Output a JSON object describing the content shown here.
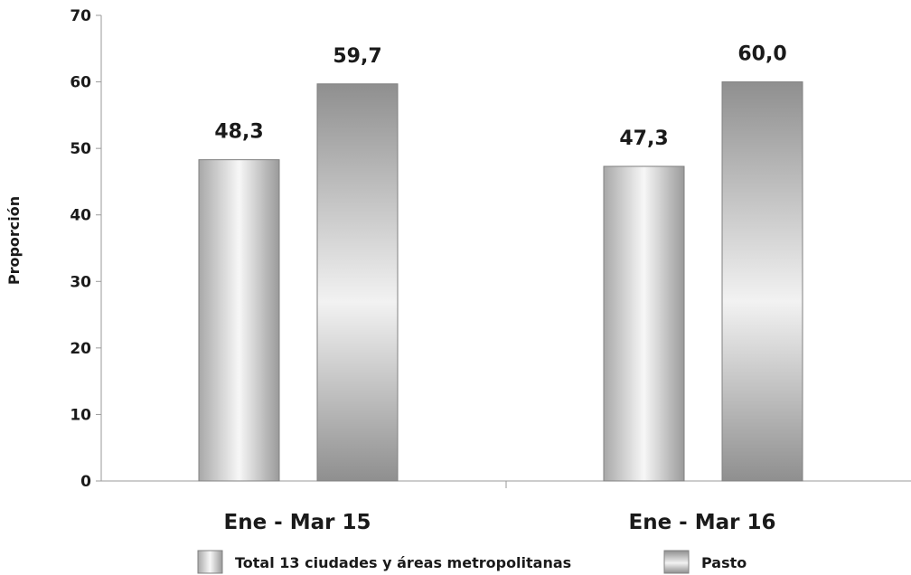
{
  "chart_data": {
    "type": "bar",
    "categories": [
      "Ene - Mar 15",
      "Ene - Mar 16"
    ],
    "series": [
      {
        "name": "Total 13 ciudades y áreas metropolitanas",
        "values": [
          48.3,
          47.3
        ],
        "labels": [
          "48,3",
          "47,3"
        ],
        "color": "#d4d4d4"
      },
      {
        "name": "Pasto",
        "values": [
          59.7,
          60.0
        ],
        "labels": [
          "59,7",
          "60,0"
        ],
        "color": "#a6a6a6"
      }
    ],
    "title": "",
    "xlabel": "",
    "ylabel": "Proporción",
    "ylim": [
      0,
      70
    ],
    "yticks": [
      0,
      10,
      20,
      30,
      40,
      50,
      60,
      70
    ],
    "grid": false,
    "legend_position": "bottom"
  }
}
